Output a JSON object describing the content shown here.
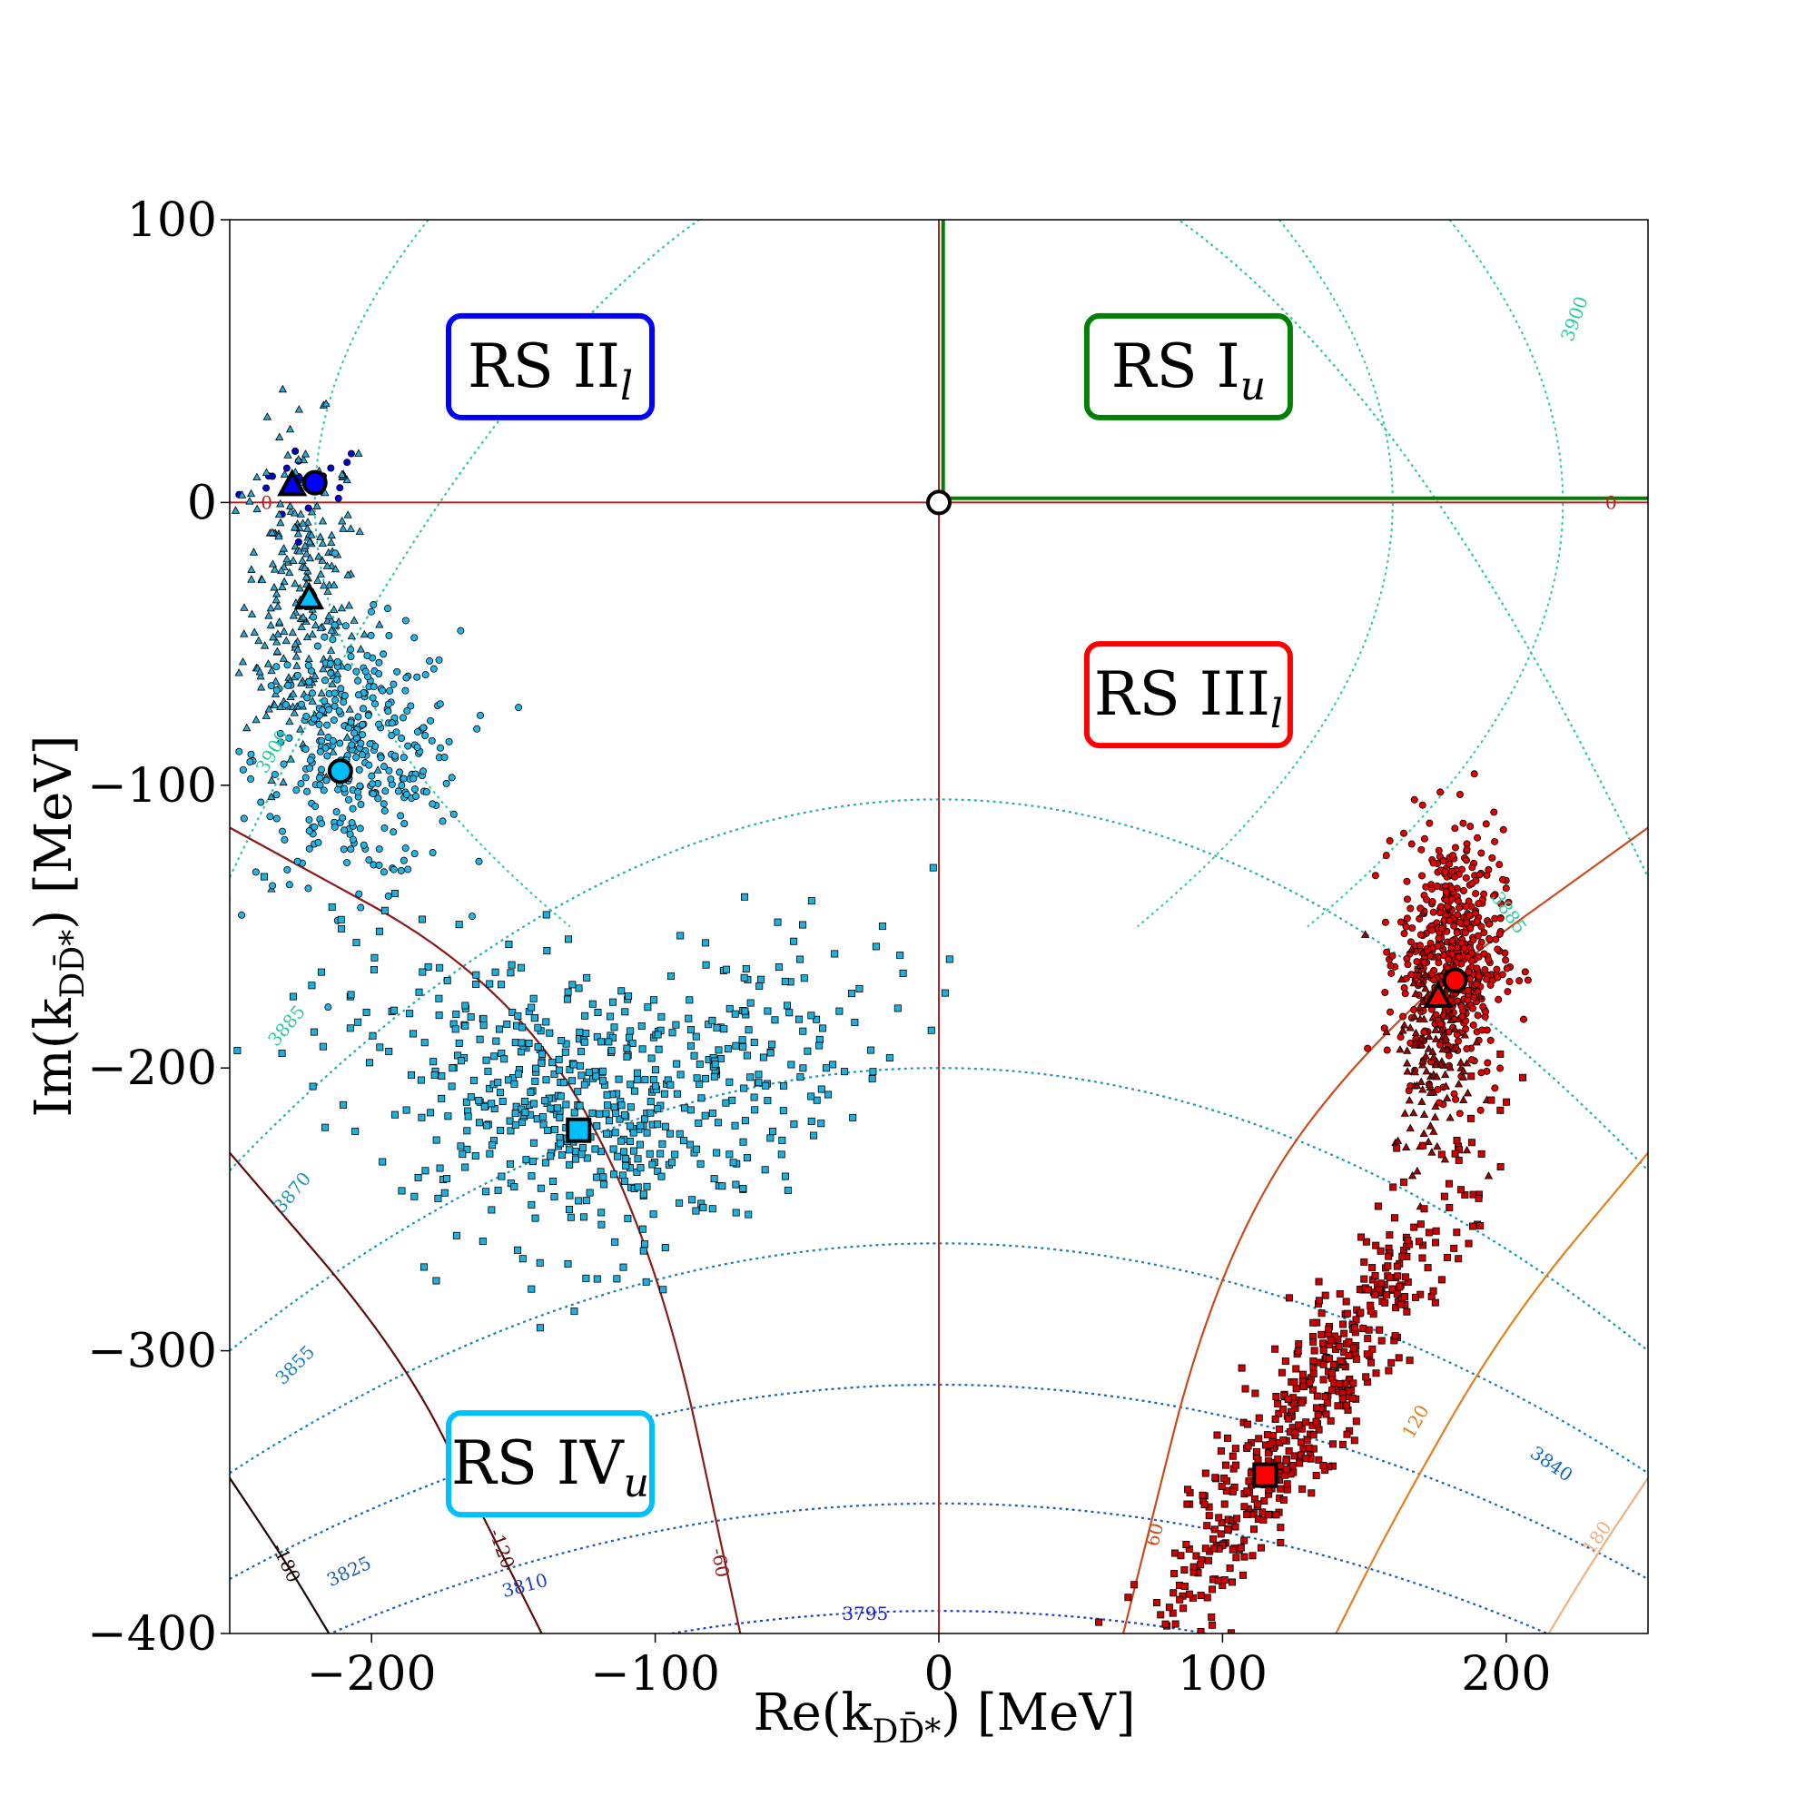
{
  "chart_data": {
    "type": "scatter",
    "title": "",
    "xlabel": "Re(k",
    "xlabel_sub": "DD̄*",
    "xlabel_tail": ") [MeV]",
    "ylabel": "Im(k",
    "ylabel_sub": "DD̄*",
    "ylabel_tail": ") [MeV]",
    "xlim": [
      -250,
      250
    ],
    "ylim": [
      -400,
      100
    ],
    "xticks": [
      -200,
      -100,
      0,
      100,
      200
    ],
    "xtick_labels": [
      "−200",
      "−100",
      "0",
      "100",
      "200"
    ],
    "yticks": [
      100,
      0,
      -100,
      -200,
      -300,
      -400
    ],
    "ytick_labels": [
      "100",
      "0",
      "−100",
      "−200",
      "−300",
      "−400"
    ],
    "region_labels": [
      {
        "name": "RS II",
        "sub": "l",
        "color": "#0000ff",
        "x": -137,
        "y": 48
      },
      {
        "name": "RS I",
        "sub": "u",
        "color": "#008000",
        "x": 88,
        "y": 48
      },
      {
        "name": "RS III",
        "sub": "l",
        "color": "#ff0000",
        "x": 88,
        "y": -68
      },
      {
        "name": "RS IV",
        "sub": "u",
        "color": "#00bfff",
        "x": -137,
        "y": -340
      }
    ],
    "energy_contours": {
      "labels": [
        "3900",
        "3885",
        "3870",
        "3855",
        "3840",
        "3825",
        "3810",
        "3795"
      ],
      "colors": [
        "#2ec8a0",
        "#2aaea8",
        "#1e96ad",
        "#1a7fb5",
        "#1567b8",
        "#1f5bb9",
        "#1a3fc0",
        "#2222c8"
      ],
      "description": "dotted lines of constant real energy (MeV)"
    },
    "width_contours": {
      "labels": [
        "0",
        "-60",
        "-120",
        "-180",
        "60",
        "120",
        "180"
      ],
      "colors": [
        "#b22222",
        "#8b1a1a",
        "#5c0e0e",
        "#1a0505",
        "#cc4a1a",
        "#e08020",
        "#f0b080"
      ],
      "description": "solid lines of constant imaginary energy (MeV)"
    },
    "series": [
      {
        "name": "RS II_l sample",
        "marker": "circle",
        "color": "#0000cc",
        "center": [
          -222,
          7
        ],
        "spread": [
          12,
          8
        ],
        "count": 20
      },
      {
        "name": "RS IV_u triangles",
        "marker": "triangle",
        "color": "#2aa9d6",
        "center": [
          -225,
          -35
        ],
        "spread": [
          10,
          30
        ],
        "count": 260
      },
      {
        "name": "RS IV_u circles",
        "marker": "circle",
        "color": "#21b6e8",
        "center": [
          -205,
          -90
        ],
        "spread": [
          18,
          22
        ],
        "count": 360
      },
      {
        "name": "RS IV_u squares",
        "marker": "square",
        "color": "#1eb0dd",
        "center": [
          -120,
          -215
        ],
        "spread": [
          45,
          25
        ],
        "count": 620
      },
      {
        "name": "RS III_l circles",
        "marker": "circle",
        "color": "#e00000",
        "center": [
          181,
          -160
        ],
        "spread": [
          9,
          22
        ],
        "count": 520
      },
      {
        "name": "RS III_l triangles",
        "marker": "triangle",
        "color": "#a00000",
        "center": [
          174,
          -195
        ],
        "spread": [
          7,
          20
        ],
        "count": 120
      },
      {
        "name": "RS III_l squares",
        "marker": "square",
        "color": "#cc0000",
        "center": [
          130,
          -320
        ],
        "spread": [
          30,
          40
        ],
        "count": 520
      }
    ],
    "highlight_points": [
      {
        "name": "RS II_l circle",
        "marker": "circle",
        "x": -220,
        "y": 7,
        "color": "#0000ff"
      },
      {
        "name": "RS II_l triangle",
        "marker": "triangle",
        "x": -228,
        "y": 6,
        "color": "#0000ff"
      },
      {
        "name": "RS IV_u triangle",
        "marker": "triangle",
        "x": -222,
        "y": -34,
        "color": "#00bfff"
      },
      {
        "name": "RS IV_u circle",
        "marker": "circle",
        "x": -211,
        "y": -95,
        "color": "#00bfff"
      },
      {
        "name": "RS IV_u square",
        "marker": "square",
        "x": -127,
        "y": -222,
        "color": "#00bfff"
      },
      {
        "name": "RS III_l circle",
        "marker": "circle",
        "x": 182,
        "y": -169,
        "color": "#ff0000"
      },
      {
        "name": "RS III_l triangle",
        "marker": "triangle",
        "x": 176,
        "y": -175,
        "color": "#ff0000"
      },
      {
        "name": "RS III_l square",
        "marker": "square",
        "x": 115,
        "y": -344,
        "color": "#ff0000"
      },
      {
        "name": "threshold",
        "marker": "circle",
        "x": 0,
        "y": 0,
        "color": "#ffffff"
      }
    ]
  }
}
